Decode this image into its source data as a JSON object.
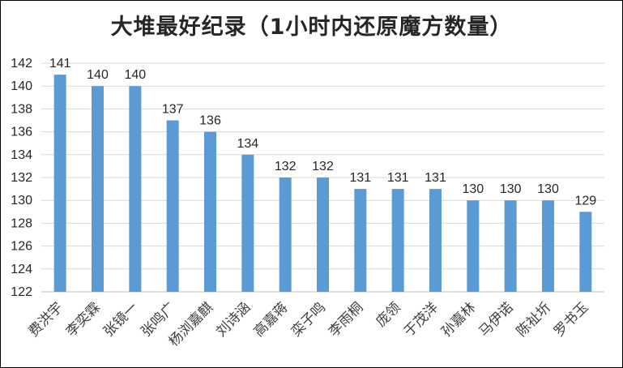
{
  "chart_data": {
    "type": "bar",
    "title": "大堆最好纪录（1小时内还原魔方数量）",
    "xlabel": "",
    "ylabel": "",
    "ylim": [
      122,
      142
    ],
    "yticks": [
      122,
      124,
      126,
      128,
      130,
      132,
      134,
      136,
      138,
      140,
      142
    ],
    "grid": true,
    "legend": "none",
    "bar_color": "#5b9bd5",
    "data_labels": true,
    "categories": [
      "费洪宇",
      "李奕霖",
      "张镜一",
      "张鸣广",
      "杨浏嘉麒",
      "刘诗涵",
      "高嘉蒋",
      "栾子鸣",
      "李雨桐",
      "庞领",
      "于茂洋",
      "孙嘉林",
      "马伊诺",
      "陈祉圻",
      "罗书玉"
    ],
    "values": [
      141,
      140,
      140,
      137,
      136,
      134,
      132,
      132,
      131,
      131,
      131,
      130,
      130,
      130,
      129
    ]
  }
}
